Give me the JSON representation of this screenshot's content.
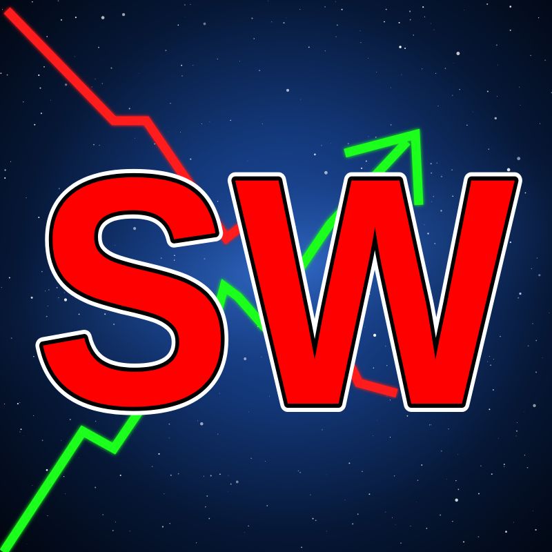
{
  "logo": {
    "text": "SW",
    "fill_color": "#ff0000",
    "inner_outline_color": "#000000",
    "outer_outline_color": "#ffffff"
  },
  "colors": {
    "down_trend_line": "#ff1a1a",
    "up_trend_line": "#1aff1a",
    "background_deep": "#01040c",
    "background_nebula": "#1a4c9e"
  },
  "decor": {
    "down_trend": "red-downtrend-line",
    "up_trend": "green-uptrend-arrow",
    "background": "starfield-galaxy"
  }
}
